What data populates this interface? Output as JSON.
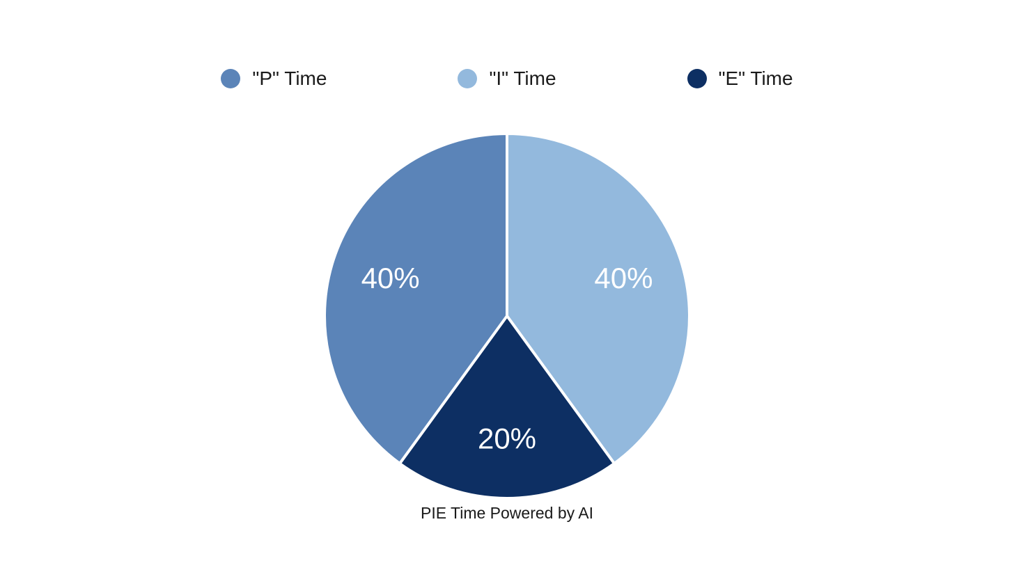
{
  "page": {
    "background_color": "#ffffff",
    "text_color": "#1a1a1a"
  },
  "legend": {
    "position": "top",
    "items": [
      {
        "label": "\"P\" Time",
        "color": "#5b84b8"
      },
      {
        "label": "\"I\" Time",
        "color": "#93b9dd"
      },
      {
        "label": "\"E\" Time",
        "color": "#0d2f63"
      }
    ]
  },
  "chart_data": {
    "type": "pie",
    "title": "",
    "caption": "PIE Time Powered by AI",
    "unit": "percent",
    "start_angle_deg": 0,
    "direction": "clockwise",
    "legend_position": "top",
    "slice_label_color": "#ffffff",
    "slice_divider_color": "#ffffff",
    "slice_divider_width": 4,
    "radius_px": 262,
    "label_radius_px": 176,
    "slices": [
      {
        "name": "\"I\" Time",
        "value": 40,
        "label": "40%",
        "color": "#93b9dd"
      },
      {
        "name": "\"E\" Time",
        "value": 20,
        "label": "20%",
        "color": "#0d2f63"
      },
      {
        "name": "\"P\" Time",
        "value": 40,
        "label": "40%",
        "color": "#5b84b8"
      }
    ]
  }
}
